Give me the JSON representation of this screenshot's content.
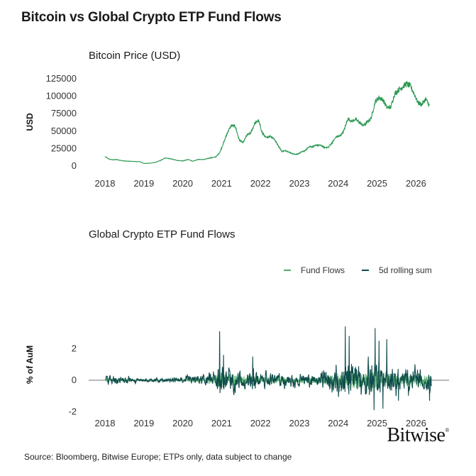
{
  "title": "Bitcoin vs Global Crypto ETP Fund Flows",
  "source": "Source: Bloomberg, Bitwise Europe; ETPs only, data subject to change",
  "logo_text": "Bitwise",
  "logo_mark": "®",
  "colors": {
    "fund_flows": "#4fae6d",
    "rolling_sum": "#0f4a4b",
    "price": "#2e9a55",
    "axis": "#444444"
  },
  "chart_data": [
    {
      "type": "line",
      "title": "Bitcoin Price (USD)",
      "ylabel": "USD",
      "xlabel": "",
      "xlim": [
        2018.0,
        2026.45
      ],
      "ylim": [
        0,
        125000
      ],
      "x_ticks": [
        "2018",
        "2019",
        "2020",
        "2021",
        "2022",
        "2023",
        "2024",
        "2025",
        "2026"
      ],
      "y_ticks": [
        "0",
        "25000",
        "50000",
        "75000",
        "100000",
        "125000"
      ],
      "grid": false,
      "series": [
        {
          "x": [
            2018.0,
            2018.1,
            2018.2,
            2018.3,
            2018.45,
            2018.6,
            2018.75,
            2018.9,
            2019.0,
            2019.15,
            2019.3,
            2019.45,
            2019.55,
            2019.7,
            2019.85,
            2020.0,
            2020.15,
            2020.25,
            2020.4,
            2020.55,
            2020.7,
            2020.85,
            2020.95,
            2021.05,
            2021.15,
            2021.25,
            2021.35,
            2021.45,
            2021.55,
            2021.65,
            2021.75,
            2021.85,
            2021.95,
            2022.05,
            2022.15,
            2022.25,
            2022.35,
            2022.45,
            2022.55,
            2022.65,
            2022.75,
            2022.85,
            2022.95,
            2023.05,
            2023.15,
            2023.25,
            2023.35,
            2023.45,
            2023.55,
            2023.65,
            2023.75,
            2023.85,
            2023.95,
            2024.05,
            2024.15,
            2024.25,
            2024.35,
            2024.45,
            2024.55,
            2024.65,
            2024.75,
            2024.85,
            2024.95,
            2025.05,
            2025.15,
            2025.25,
            2025.35,
            2025.45,
            2025.55,
            2025.65,
            2025.75,
            2025.85,
            2025.95,
            2026.05,
            2026.15,
            2026.25,
            2026.35
          ],
          "y": [
            13500,
            10000,
            8800,
            9200,
            7500,
            6800,
            6500,
            6200,
            3700,
            3900,
            5200,
            8500,
            11500,
            10200,
            8000,
            7200,
            9500,
            6800,
            9400,
            9300,
            11500,
            13000,
            19000,
            33000,
            48000,
            58000,
            57000,
            38000,
            33000,
            44000,
            47000,
            61000,
            65000,
            47000,
            40000,
            43000,
            39000,
            30000,
            21000,
            22000,
            19500,
            17000,
            16800,
            20000,
            22000,
            28000,
            27500,
            30000,
            29500,
            26500,
            27000,
            34000,
            42000,
            43000,
            51000,
            68000,
            64000,
            67000,
            62000,
            58000,
            63000,
            69000,
            92000,
            98000,
            95000,
            84000,
            84000,
            103000,
            109000,
            113000,
            118000,
            115000,
            104000,
            91000,
            88000,
            96000,
            86000
          ]
        }
      ]
    },
    {
      "type": "line",
      "title": "Global Crypto ETP Fund Flows",
      "ylabel": "% of AuM",
      "xlabel": "",
      "xlim": [
        2018.0,
        2026.45
      ],
      "ylim": [
        -2.2,
        3.5
      ],
      "x_ticks": [
        "2018",
        "2019",
        "2020",
        "2021",
        "2022",
        "2023",
        "2024",
        "2025",
        "2026"
      ],
      "y_ticks": [
        "-2",
        "0",
        "2"
      ],
      "legend": "top-right",
      "series": [
        {
          "name": "Fund Flows",
          "kind": "daily"
        },
        {
          "name": "5d rolling sum",
          "kind": "rolling"
        }
      ],
      "activity_profile": {
        "x": [
          2018.0,
          2018.3,
          2018.7,
          2019.0,
          2019.4,
          2019.8,
          2020.0,
          2020.5,
          2020.8,
          2021.0,
          2021.3,
          2021.6,
          2021.8,
          2022.0,
          2022.5,
          2023.0,
          2023.5,
          2024.0,
          2024.3,
          2024.6,
          2024.9,
          2025.2,
          2025.6,
          2026.0,
          2026.45
        ],
        "amplitude": [
          0.35,
          0.25,
          0.18,
          0.12,
          0.15,
          0.15,
          0.2,
          0.35,
          0.6,
          1.2,
          0.8,
          0.6,
          0.9,
          0.4,
          0.5,
          0.35,
          0.4,
          1.0,
          1.4,
          0.9,
          1.5,
          1.1,
          0.8,
          0.8,
          0.7
        ],
        "rolling_peaks": [
          [
            2020.95,
            3.1
          ],
          [
            2021.05,
            1.6
          ],
          [
            2021.8,
            1.5
          ],
          [
            2024.18,
            3.4
          ],
          [
            2024.28,
            2.8
          ],
          [
            2024.95,
            3.3
          ],
          [
            2025.05,
            2.5
          ],
          [
            2025.25,
            2.6
          ],
          [
            2024.92,
            -1.9
          ],
          [
            2025.15,
            -1.8
          ],
          [
            2025.55,
            -1.3
          ],
          [
            2026.35,
            -1.3
          ]
        ]
      }
    }
  ]
}
